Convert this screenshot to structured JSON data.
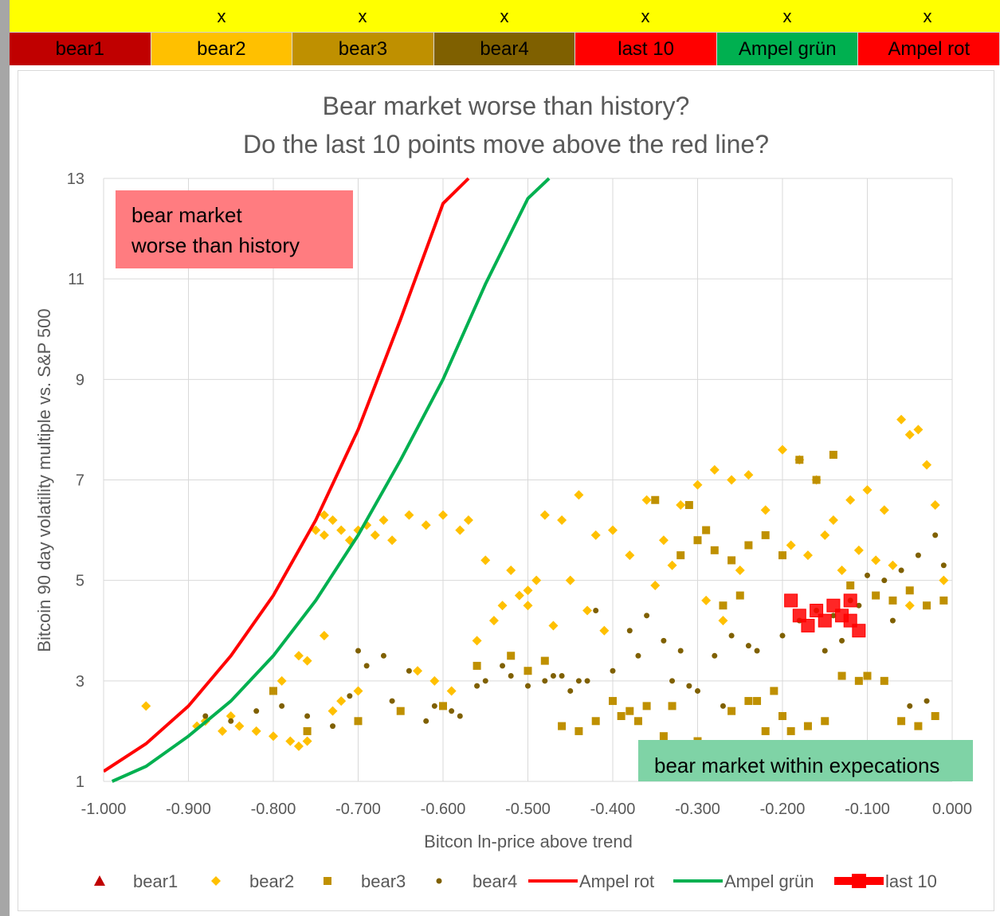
{
  "header": {
    "marks": [
      "x",
      "x",
      "x",
      "x",
      "x",
      "x"
    ]
  },
  "legend_bar": [
    {
      "label": "bear1",
      "color": "#c00000"
    },
    {
      "label": "bear2",
      "color": "#ffc000"
    },
    {
      "label": "bear3",
      "color": "#bf9000"
    },
    {
      "label": "bear4",
      "color": "#7f6000"
    },
    {
      "label": "last 10",
      "color": "#ff0000"
    },
    {
      "label": "Ampel grün",
      "color": "#00b050"
    },
    {
      "label": "Ampel rot",
      "color": "#ff0000"
    }
  ],
  "chart_data": {
    "type": "scatter",
    "title": [
      "Bear market worse than history?",
      "Do the last 10 points move above the red line?"
    ],
    "xlabel": "Bitcon ln-price above trend",
    "ylabel": "Bitcoin 90 day volatility multiple vs. S&P 500",
    "xlim": [
      -1.0,
      0.0
    ],
    "ylim": [
      1,
      13
    ],
    "xticks": [
      -1.0,
      -0.9,
      -0.8,
      -0.7,
      -0.6,
      -0.5,
      -0.4,
      -0.3,
      -0.2,
      -0.1,
      0.0
    ],
    "xtick_labels": [
      "-1.000",
      "-0.900",
      "-0.800",
      "-0.700",
      "-0.600",
      "-0.500",
      "-0.400",
      "-0.300",
      "-0.200",
      "-0.100",
      "0.000"
    ],
    "yticks": [
      1,
      3,
      5,
      7,
      9,
      11,
      13
    ],
    "ytick_labels": [
      "1",
      "3",
      "5",
      "7",
      "9",
      "11",
      "13"
    ],
    "grid": true,
    "legend_position": "bottom",
    "annotations": [
      {
        "text": [
          "bear market",
          "worse than history"
        ],
        "color": "#ff7c80",
        "position": "top-left"
      },
      {
        "text": [
          "bear market within expecations"
        ],
        "color": "#7fd3a6",
        "position": "bottom-right"
      }
    ],
    "series": [
      {
        "name": "Ampel rot",
        "kind": "line",
        "color": "#ff0000",
        "x": [
          -1.0,
          -0.95,
          -0.9,
          -0.85,
          -0.8,
          -0.75,
          -0.7,
          -0.65,
          -0.6,
          -0.57
        ],
        "y": [
          1.2,
          1.75,
          2.5,
          3.5,
          4.7,
          6.2,
          8.0,
          10.2,
          12.5,
          13.0
        ]
      },
      {
        "name": "Ampel grün",
        "kind": "line",
        "color": "#00b050",
        "x": [
          -0.99,
          -0.95,
          -0.9,
          -0.85,
          -0.8,
          -0.75,
          -0.7,
          -0.65,
          -0.6,
          -0.55,
          -0.5,
          -0.475
        ],
        "y": [
          1.0,
          1.3,
          1.9,
          2.6,
          3.5,
          4.6,
          5.9,
          7.4,
          9.0,
          10.9,
          12.6,
          13.0
        ]
      },
      {
        "name": "bear1",
        "kind": "scatter",
        "marker": "triangle",
        "color": "#c00000",
        "x": [],
        "y": []
      },
      {
        "name": "bear2",
        "kind": "scatter",
        "marker": "diamond",
        "color": "#ffc000",
        "x": [
          -0.95,
          -0.89,
          -0.88,
          -0.86,
          -0.85,
          -0.84,
          -0.82,
          -0.8,
          -0.78,
          -0.77,
          -0.76,
          -0.75,
          -0.74,
          -0.74,
          -0.73,
          -0.72,
          -0.71,
          -0.7,
          -0.69,
          -0.68,
          -0.67,
          -0.66,
          -0.64,
          -0.62,
          -0.6,
          -0.58,
          -0.57,
          -0.55,
          -0.53,
          -0.52,
          -0.5,
          -0.49,
          -0.48,
          -0.46,
          -0.44,
          -0.42,
          -0.4,
          -0.38,
          -0.36,
          -0.34,
          -0.32,
          -0.3,
          -0.28,
          -0.26,
          -0.24,
          -0.22,
          -0.2,
          -0.18,
          -0.16,
          -0.14,
          -0.12,
          -0.1,
          -0.08,
          -0.06,
          -0.05,
          -0.04,
          -0.03,
          -0.02,
          -0.01,
          -0.74,
          -0.72,
          -0.7,
          -0.77,
          -0.79,
          -0.76,
          -0.73,
          -0.56,
          -0.54,
          -0.5,
          -0.47,
          -0.63,
          -0.61,
          -0.59,
          -0.51,
          -0.45,
          -0.43,
          -0.41,
          -0.35,
          -0.33,
          -0.29,
          -0.27,
          -0.25,
          -0.19,
          -0.17,
          -0.15,
          -0.13,
          -0.11,
          -0.09,
          -0.07,
          -0.05
        ],
        "y": [
          2.5,
          2.1,
          2.2,
          2.0,
          2.3,
          2.1,
          2.0,
          1.9,
          1.8,
          1.7,
          1.8,
          6.0,
          6.3,
          5.9,
          6.2,
          6.0,
          5.8,
          6.0,
          6.1,
          5.9,
          6.2,
          5.8,
          6.3,
          6.1,
          6.3,
          6.0,
          6.2,
          5.4,
          4.5,
          5.2,
          4.8,
          5.0,
          6.3,
          6.2,
          6.7,
          5.9,
          6.0,
          5.5,
          6.6,
          5.8,
          6.5,
          6.9,
          7.2,
          7.0,
          7.1,
          6.4,
          7.6,
          7.4,
          7.0,
          6.2,
          6.6,
          6.8,
          6.4,
          8.2,
          7.9,
          8.0,
          7.3,
          6.5,
          5.0,
          3.9,
          2.6,
          2.8,
          3.5,
          3.0,
          3.4,
          2.4,
          3.8,
          4.2,
          4.5,
          4.1,
          3.2,
          3.0,
          2.8,
          4.7,
          5.0,
          4.4,
          4.0,
          4.9,
          5.3,
          4.6,
          4.2,
          5.2,
          5.7,
          5.5,
          5.9,
          5.2,
          5.6,
          5.4,
          5.3,
          4.5
        ]
      },
      {
        "name": "bear3",
        "kind": "scatter",
        "marker": "square",
        "color": "#bf9000",
        "x": [
          -0.8,
          -0.76,
          -0.7,
          -0.65,
          -0.6,
          -0.56,
          -0.52,
          -0.5,
          -0.48,
          -0.46,
          -0.44,
          -0.42,
          -0.4,
          -0.38,
          -0.36,
          -0.34,
          -0.32,
          -0.3,
          -0.28,
          -0.26,
          -0.24,
          -0.22,
          -0.2,
          -0.18,
          -0.16,
          -0.14,
          -0.12,
          -0.1,
          -0.08,
          -0.06,
          -0.04,
          -0.02,
          -0.35,
          -0.31,
          -0.29,
          -0.27,
          -0.25,
          -0.23,
          -0.21,
          -0.19,
          -0.17,
          -0.15,
          -0.13,
          -0.11,
          -0.09,
          -0.07,
          -0.05,
          -0.03,
          -0.01,
          -0.39,
          -0.37,
          -0.33,
          -0.3,
          -0.26,
          -0.24,
          -0.22,
          -0.2
        ],
        "y": [
          2.8,
          2.0,
          2.2,
          2.4,
          2.5,
          3.3,
          3.5,
          3.2,
          3.4,
          2.1,
          2.0,
          2.2,
          2.6,
          2.4,
          2.5,
          1.9,
          5.5,
          5.8,
          5.6,
          5.4,
          5.7,
          5.9,
          5.5,
          7.4,
          7.0,
          7.5,
          4.9,
          3.1,
          3.0,
          2.2,
          2.1,
          2.3,
          6.6,
          6.5,
          6.0,
          4.5,
          4.7,
          2.6,
          2.8,
          2.0,
          2.1,
          2.2,
          3.1,
          3.0,
          4.7,
          4.6,
          4.8,
          4.5,
          4.6,
          2.3,
          2.2,
          2.5,
          1.8,
          2.4,
          2.6,
          2.0,
          2.3
        ]
      },
      {
        "name": "bear4",
        "kind": "scatter",
        "marker": "circle",
        "color": "#7f6000",
        "x": [
          -0.88,
          -0.85,
          -0.82,
          -0.79,
          -0.76,
          -0.73,
          -0.7,
          -0.67,
          -0.64,
          -0.61,
          -0.58,
          -0.55,
          -0.52,
          -0.5,
          -0.48,
          -0.46,
          -0.44,
          -0.42,
          -0.4,
          -0.38,
          -0.36,
          -0.34,
          -0.32,
          -0.3,
          -0.28,
          -0.26,
          -0.24,
          -0.2,
          -0.18,
          -0.16,
          -0.14,
          -0.12,
          -0.1,
          -0.08,
          -0.06,
          -0.04,
          -0.02,
          -0.01,
          -0.71,
          -0.69,
          -0.66,
          -0.62,
          -0.59,
          -0.56,
          -0.53,
          -0.47,
          -0.45,
          -0.43,
          -0.37,
          -0.33,
          -0.31,
          -0.27,
          -0.23,
          -0.15,
          -0.13,
          -0.11,
          -0.07,
          -0.05,
          -0.03
        ],
        "y": [
          2.3,
          2.2,
          2.4,
          2.5,
          2.3,
          2.1,
          3.6,
          3.5,
          3.2,
          2.5,
          2.3,
          3.0,
          3.1,
          2.9,
          3.0,
          3.1,
          3.0,
          4.4,
          3.2,
          4.0,
          4.3,
          3.8,
          3.6,
          2.8,
          3.5,
          3.9,
          3.7,
          3.9,
          4.2,
          4.4,
          4.3,
          4.6,
          5.1,
          5.0,
          5.2,
          5.5,
          5.9,
          5.3,
          2.7,
          3.3,
          2.6,
          2.2,
          2.4,
          2.9,
          3.3,
          3.1,
          2.8,
          3.0,
          3.5,
          3.0,
          2.9,
          2.5,
          3.6,
          3.6,
          3.8,
          4.5,
          4.2,
          2.5,
          2.6
        ]
      },
      {
        "name": "last 10",
        "kind": "scatter",
        "marker": "square-large",
        "color": "#ff0000",
        "x": [
          -0.19,
          -0.18,
          -0.17,
          -0.16,
          -0.15,
          -0.14,
          -0.13,
          -0.12,
          -0.11,
          -0.12
        ],
        "y": [
          4.6,
          4.3,
          4.1,
          4.4,
          4.2,
          4.5,
          4.3,
          4.6,
          4.0,
          4.2
        ]
      }
    ]
  }
}
